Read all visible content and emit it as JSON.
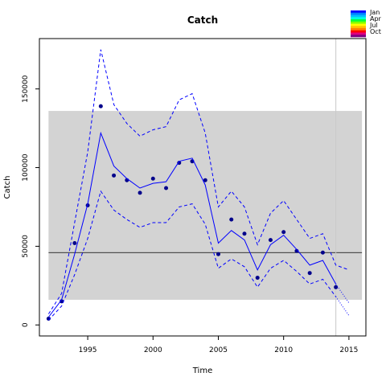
{
  "chart_data": {
    "type": "line",
    "title": "Catch",
    "xlabel": "Time",
    "ylabel": "Catch",
    "xlim": [
      1991.3,
      2016.3
    ],
    "ylim": [
      -7000,
      182000
    ],
    "x_ticks": [
      1995,
      2000,
      2005,
      2010,
      2015
    ],
    "y_ticks": [
      0,
      50000,
      100000,
      150000
    ],
    "y_tick_labels": [
      "0",
      "50000",
      "100000",
      "150000"
    ],
    "shaded_band": {
      "x": [
        1992,
        2016
      ],
      "y": [
        16000,
        136000
      ],
      "color": "#d3d3d3"
    },
    "reference_hline": {
      "y": 46000,
      "color": "#000000"
    },
    "reference_vline": {
      "x": 2014,
      "color": "#c8c8c8"
    },
    "series": [
      {
        "style": "points",
        "color": "#00008b",
        "x": [
          1992,
          1993,
          1994,
          1995,
          1996,
          1997,
          1998,
          1999,
          2000,
          2001,
          2002,
          2003,
          2004,
          2005,
          2006,
          2007,
          2008,
          2009,
          2010,
          2011,
          2012,
          2013,
          2014
        ],
        "y": [
          4000,
          15000,
          52000,
          76000,
          139000,
          95000,
          92000,
          84000,
          93000,
          87000,
          103000,
          104000,
          92000,
          45000,
          67000,
          58000,
          30000,
          54000,
          59000,
          47000,
          33000,
          46000,
          24000
        ]
      },
      {
        "style": "solid",
        "color": "#0000ff",
        "x": [
          1992,
          1993,
          1994,
          1995,
          1996,
          1997,
          1998,
          1999,
          2000,
          2001,
          2002,
          2003,
          2004,
          2005,
          2006,
          2007,
          2008,
          2009,
          2010,
          2011,
          2012,
          2013,
          2014
        ],
        "y": [
          5000,
          16000,
          45000,
          77000,
          122000,
          101000,
          93000,
          87000,
          90000,
          91000,
          104000,
          106000,
          89000,
          52000,
          60000,
          54000,
          35000,
          51000,
          57000,
          48000,
          38000,
          41000,
          26000
        ]
      },
      {
        "style": "dashed",
        "color": "#0000ff",
        "x": [
          1992,
          1993,
          1994,
          1995,
          1996,
          1997,
          1998,
          1999,
          2000,
          2001,
          2002,
          2003,
          2004,
          2005,
          2006,
          2007,
          2008,
          2009,
          2010,
          2011,
          2012,
          2013,
          2014,
          2015
        ],
        "y": [
          7000,
          20000,
          65000,
          110000,
          175000,
          140000,
          128000,
          120000,
          124000,
          126000,
          143000,
          147000,
          122000,
          75000,
          85000,
          75000,
          51000,
          71000,
          79000,
          67000,
          55000,
          58000,
          38000,
          35000
        ]
      },
      {
        "style": "dashed",
        "color": "#0000ff",
        "x": [
          1992,
          1993,
          1994,
          1995,
          1996,
          1997,
          1998,
          1999,
          2000,
          2001,
          2002,
          2003,
          2004,
          2005,
          2006,
          2007,
          2008,
          2009,
          2010,
          2011,
          2012,
          2013,
          2014
        ],
        "y": [
          3000,
          12000,
          32000,
          55000,
          85000,
          73000,
          67000,
          62000,
          65000,
          65000,
          75000,
          77000,
          64000,
          36000,
          42000,
          37000,
          24000,
          36000,
          41000,
          34000,
          26000,
          29000,
          18000
        ]
      },
      {
        "style": "dotted",
        "color": "#0000ff",
        "x": [
          2014,
          2015
        ],
        "y": [
          26000,
          14000
        ]
      },
      {
        "style": "dotted",
        "color": "#0000ff",
        "x": [
          2014,
          2015
        ],
        "y": [
          18000,
          6000
        ]
      }
    ],
    "legend": {
      "placement": "top-right",
      "labels": [
        "Jan",
        "Apr",
        "Jul",
        "Oct"
      ],
      "colors": [
        "#0000ff",
        "#0080ff",
        "#00c0ff",
        "#00ffe0",
        "#00ff40",
        "#80ff00",
        "#ffff00",
        "#ffc000",
        "#ff8000",
        "#ff0000",
        "#e00080",
        "#800080"
      ]
    }
  }
}
